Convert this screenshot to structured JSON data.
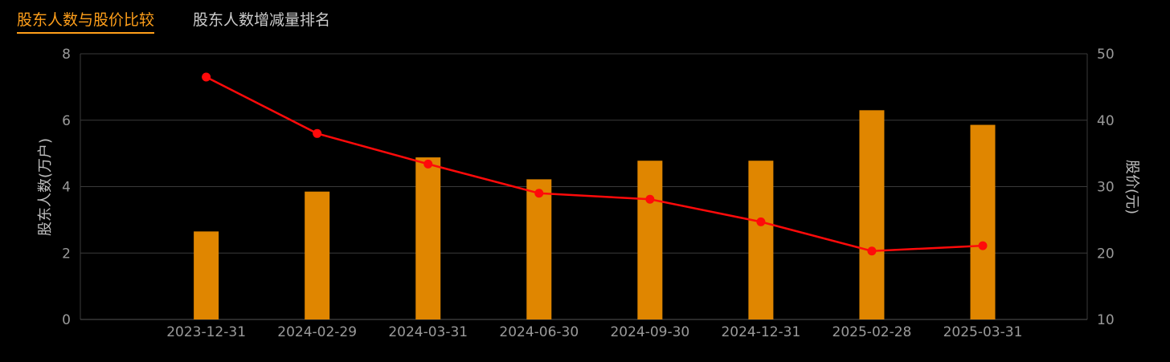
{
  "tabs": [
    {
      "label": "股东人数与股价比较",
      "active": true
    },
    {
      "label": "股东人数增减量排名",
      "active": false
    }
  ],
  "colors": {
    "background": "#000000",
    "bar": "#e08600",
    "line": "#ff0a0a",
    "grid": "#3a3a3a",
    "active_tab": "#ff9f1a"
  },
  "chart_data": {
    "type": "bar",
    "categories": [
      "2023-12-31",
      "2024-02-29",
      "2024-03-31",
      "2024-06-30",
      "2024-09-30",
      "2024-12-31",
      "2025-02-28",
      "2025-03-31"
    ],
    "series": [
      {
        "type": "bar",
        "axis": "left",
        "values": [
          2.65,
          3.85,
          4.88,
          4.22,
          4.78,
          4.78,
          6.3,
          5.86
        ]
      },
      {
        "type": "line",
        "axis": "right",
        "values": [
          46.5,
          38.0,
          33.4,
          29.0,
          28.1,
          24.7,
          20.3,
          21.1
        ]
      }
    ],
    "ylabel": "股东人数(万户)",
    "y2label": "股价(元)",
    "ylim": [
      0,
      8
    ],
    "y2lim": [
      10,
      50
    ],
    "yticks": [
      0,
      2,
      4,
      6,
      8
    ],
    "y2ticks": [
      10,
      20,
      30,
      40,
      50
    ],
    "grid": true
  }
}
